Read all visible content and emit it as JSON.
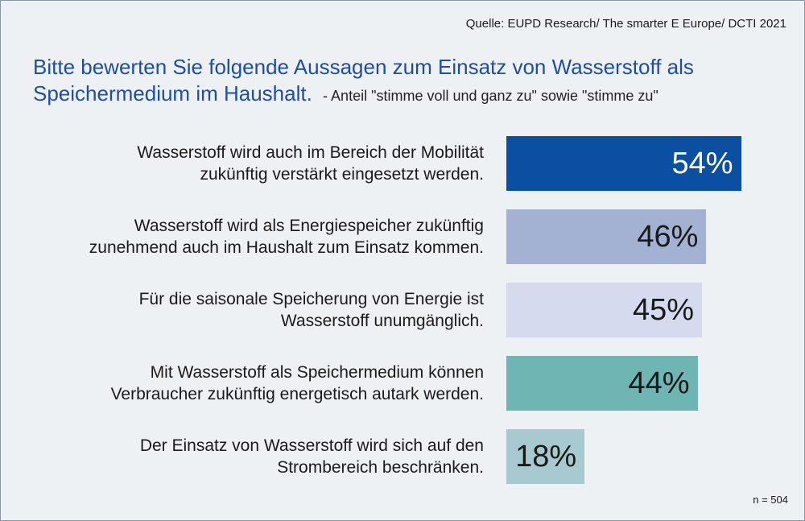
{
  "source": "Quelle: EUPD Research/ The smarter E Europe/ DCTI 2021",
  "title": {
    "main": "Bitte bewerten Sie folgende Aussagen zum Einsatz von Wasserstoff als Speichermedium im Haushalt.",
    "sub": "- Anteil \"stimme voll und ganz zu\" sowie \"stimme zu\""
  },
  "footnote": "n = 504",
  "chart_data": {
    "type": "bar",
    "orientation": "horizontal",
    "unit": "%",
    "categories": [
      "Wasserstoff wird auch im Bereich der Mobilität zukünftig verstärkt eingesetzt werden.",
      "Wasserstoff wird als Energiespeicher zukünftig zunehmend auch im Haushalt zum Einsatz kommen.",
      "Für die saisonale Speicherung von Energie ist Wasserstoff unumgänglich.",
      "Mit Wasserstoff als Speichermedium können Verbraucher zukünftig energetisch autark werden.",
      "Der Einsatz von Wasserstoff wird sich auf den Strombereich beschränken."
    ],
    "category_lines": [
      [
        "Wasserstoff wird auch im Bereich der Mobilität",
        "zukünftig verstärkt eingesetzt werden."
      ],
      [
        "Wasserstoff wird als Energiespeicher zukünftig",
        "zunehmend auch im Haushalt zum Einsatz kommen."
      ],
      [
        "Für die saisonale Speicherung von Energie ist",
        "Wasserstoff unumgänglich."
      ],
      [
        "Mit Wasserstoff als Speichermedium können",
        "Verbraucher zukünftig energetisch autark werden."
      ],
      [
        "Der Einsatz von Wasserstoff wird sich auf den",
        "Strombereich beschränken."
      ]
    ],
    "values": [
      54,
      46,
      45,
      44,
      18
    ],
    "value_labels": [
      "54%",
      "46%",
      "45%",
      "44%",
      "18%"
    ],
    "colors": [
      "#0b4fa3",
      "#a3b1d3",
      "#d6daee",
      "#6eb5b3",
      "#a7c9d0"
    ],
    "value_label_colors": [
      "#ffffff",
      "#1a1a1a",
      "#1a1a1a",
      "#1a1a1a",
      "#1a1a1a"
    ],
    "xlim": [
      0,
      100
    ],
    "grid": false,
    "legend": "none"
  }
}
